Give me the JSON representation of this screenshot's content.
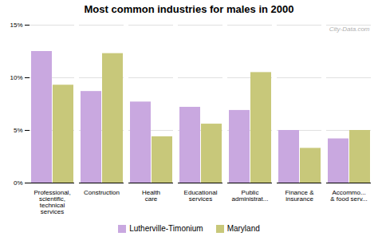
{
  "chart_data": {
    "type": "bar",
    "title": "Most common industries for males in 2000",
    "categories": [
      "Professional,\nscientific,\ntechnical\nservices",
      "Construction",
      "Health\ncare",
      "Educational\nservices",
      "Public\nadministrat...",
      "Finance &\ninsurance",
      "Accommo...\n& food serv..."
    ],
    "series": [
      {
        "name": "Lutherville-Timonium",
        "color": "#c9a8e0",
        "values": [
          12.5,
          8.7,
          7.7,
          7.2,
          6.9,
          5.0,
          4.2
        ]
      },
      {
        "name": "Maryland",
        "color": "#c8c87a",
        "values": [
          9.3,
          12.3,
          4.4,
          5.6,
          10.5,
          3.3,
          5.0
        ]
      }
    ],
    "ylim": [
      0,
      15
    ],
    "yticks": [
      {
        "value": 0,
        "label": "0%"
      },
      {
        "value": 5,
        "label": "5%"
      },
      {
        "value": 10,
        "label": "10%"
      },
      {
        "value": 15,
        "label": "15%"
      }
    ],
    "grid": true,
    "legend": "bottom",
    "annotations": [
      "City-Data.com"
    ]
  }
}
